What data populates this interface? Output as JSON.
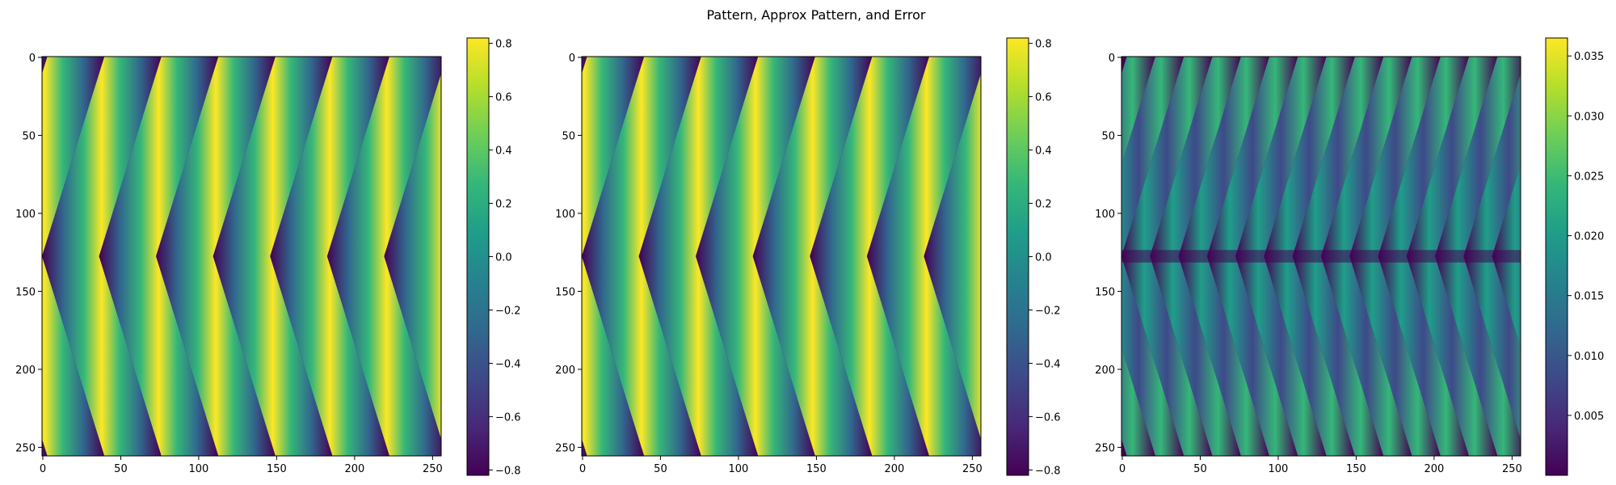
{
  "figure_title": "Pattern, Approx Pattern, and Error",
  "chart_data": [
    {
      "type": "heatmap",
      "panel": "pattern",
      "title": "",
      "colormap": "viridis",
      "image_size": [
        256,
        256
      ],
      "xlim": [
        0,
        255
      ],
      "ylim": [
        255,
        0
      ],
      "x_ticks": [
        0,
        50,
        100,
        150,
        200,
        250
      ],
      "y_ticks": [
        0,
        50,
        100,
        150,
        200,
        250
      ],
      "colorbar": {
        "min": -0.82,
        "max": 0.82,
        "ticks": [
          -0.8,
          -0.6,
          -0.4,
          -0.2,
          0.0,
          0.2,
          0.4,
          0.6,
          0.8
        ],
        "tick_labels": [
          "−0.8",
          "−0.6",
          "−0.4",
          "−0.2",
          "0.0",
          "0.2",
          "0.4",
          "0.6",
          "0.8"
        ]
      },
      "pattern": {
        "kind": "chevron",
        "stripe_count": 7,
        "apex_row": 128,
        "amplitude": 0.82
      }
    },
    {
      "type": "heatmap",
      "panel": "approx_pattern",
      "title": "",
      "colormap": "viridis",
      "image_size": [
        256,
        256
      ],
      "xlim": [
        0,
        255
      ],
      "ylim": [
        255,
        0
      ],
      "x_ticks": [
        0,
        50,
        100,
        150,
        200,
        250
      ],
      "y_ticks": [
        0,
        50,
        100,
        150,
        200,
        250
      ],
      "colorbar": {
        "min": -0.82,
        "max": 0.82,
        "ticks": [
          -0.8,
          -0.6,
          -0.4,
          -0.2,
          0.0,
          0.2,
          0.4,
          0.6,
          0.8
        ],
        "tick_labels": [
          "−0.8",
          "−0.6",
          "−0.4",
          "−0.2",
          "0.0",
          "0.2",
          "0.4",
          "0.6",
          "0.8"
        ]
      },
      "pattern": {
        "kind": "chevron",
        "stripe_count": 7,
        "apex_row": 128,
        "amplitude": 0.82
      }
    },
    {
      "type": "heatmap",
      "panel": "error",
      "title": "",
      "colormap": "viridis",
      "image_size": [
        256,
        256
      ],
      "xlim": [
        0,
        255
      ],
      "ylim": [
        255,
        0
      ],
      "x_ticks": [
        0,
        50,
        100,
        150,
        200,
        250
      ],
      "y_ticks": [
        0,
        50,
        100,
        150,
        200,
        250
      ],
      "colorbar": {
        "min": 0.0,
        "max": 0.0365,
        "ticks": [
          0.005,
          0.01,
          0.015,
          0.02,
          0.025,
          0.03,
          0.035
        ],
        "tick_labels": [
          "0.005",
          "0.010",
          "0.015",
          "0.020",
          "0.025",
          "0.030",
          "0.035"
        ]
      },
      "pattern": {
        "kind": "chevron_error",
        "stripe_count": 14,
        "apex_row": 128,
        "amplitude": 0.0365
      }
    }
  ]
}
